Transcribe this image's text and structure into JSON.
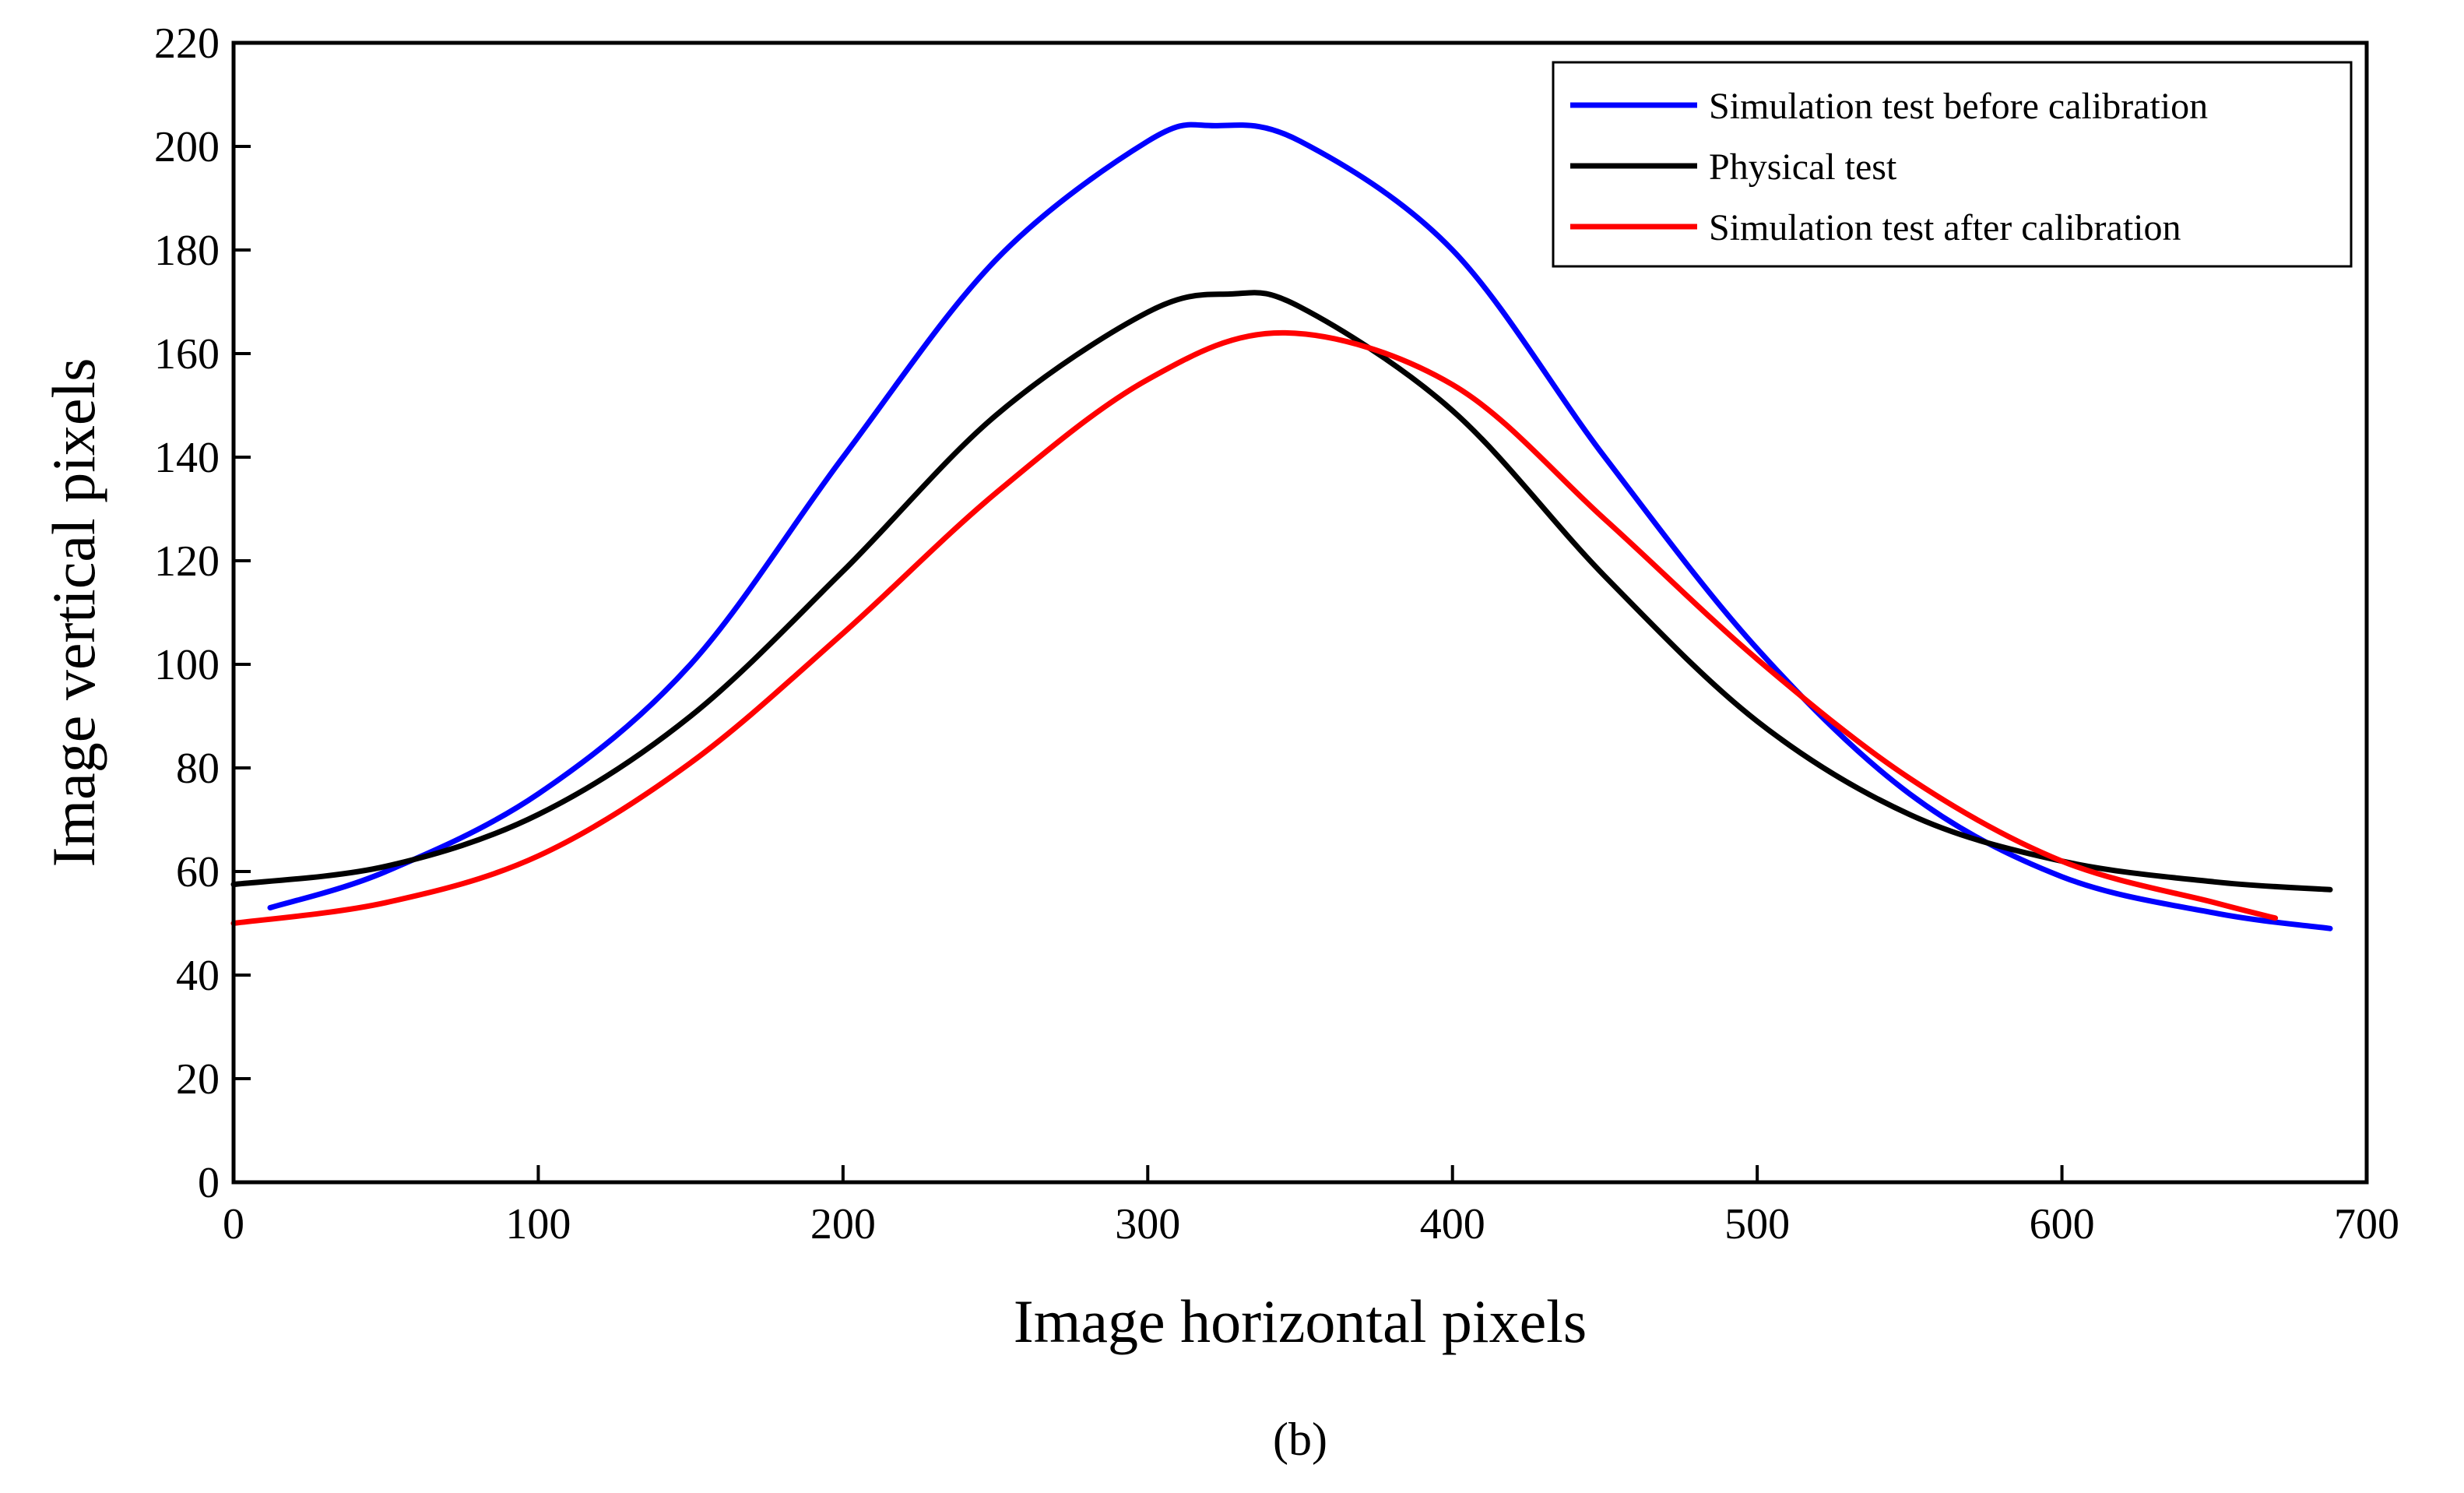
{
  "chart_data": {
    "type": "line",
    "title": "",
    "xlabel": "Image horizontal pixels",
    "ylabel": "Image vertical pixels",
    "xlim": [
      0,
      700
    ],
    "ylim": [
      0,
      220
    ],
    "xticks": [
      0,
      100,
      200,
      300,
      400,
      500,
      600,
      700
    ],
    "yticks": [
      0,
      20,
      40,
      60,
      80,
      100,
      120,
      140,
      160,
      180,
      200,
      220
    ],
    "grid": false,
    "legend_position": "top-right",
    "series": [
      {
        "name": "Simulation test before calibration",
        "color": "#0000ff",
        "points": [
          [
            12,
            53
          ],
          [
            50,
            60
          ],
          [
            100,
            75
          ],
          [
            150,
            100
          ],
          [
            200,
            140
          ],
          [
            250,
            178
          ],
          [
            300,
            201
          ],
          [
            322,
            204
          ],
          [
            350,
            201
          ],
          [
            400,
            180
          ],
          [
            450,
            140
          ],
          [
            500,
            103
          ],
          [
            550,
            75
          ],
          [
            600,
            59
          ],
          [
            650,
            52
          ],
          [
            688,
            49
          ]
        ]
      },
      {
        "name": "Physical test",
        "color": "#000000",
        "points": [
          [
            0,
            57.5
          ],
          [
            50,
            61
          ],
          [
            100,
            71
          ],
          [
            150,
            90
          ],
          [
            200,
            118
          ],
          [
            250,
            148
          ],
          [
            300,
            168
          ],
          [
            327,
            171.5
          ],
          [
            350,
            169
          ],
          [
            400,
            149
          ],
          [
            450,
            117
          ],
          [
            500,
            89
          ],
          [
            550,
            71
          ],
          [
            600,
            62
          ],
          [
            650,
            58
          ],
          [
            688,
            56.5
          ]
        ]
      },
      {
        "name": "Simulation test after calibration",
        "color": "#ff0000",
        "points": [
          [
            0,
            50
          ],
          [
            50,
            54
          ],
          [
            100,
            63
          ],
          [
            150,
            81
          ],
          [
            200,
            106
          ],
          [
            250,
            133
          ],
          [
            300,
            155
          ],
          [
            345,
            164
          ],
          [
            400,
            154
          ],
          [
            450,
            128
          ],
          [
            500,
            101
          ],
          [
            550,
            78
          ],
          [
            600,
            62
          ],
          [
            650,
            54
          ],
          [
            670,
            51
          ]
        ]
      }
    ],
    "caption": "(b)"
  }
}
